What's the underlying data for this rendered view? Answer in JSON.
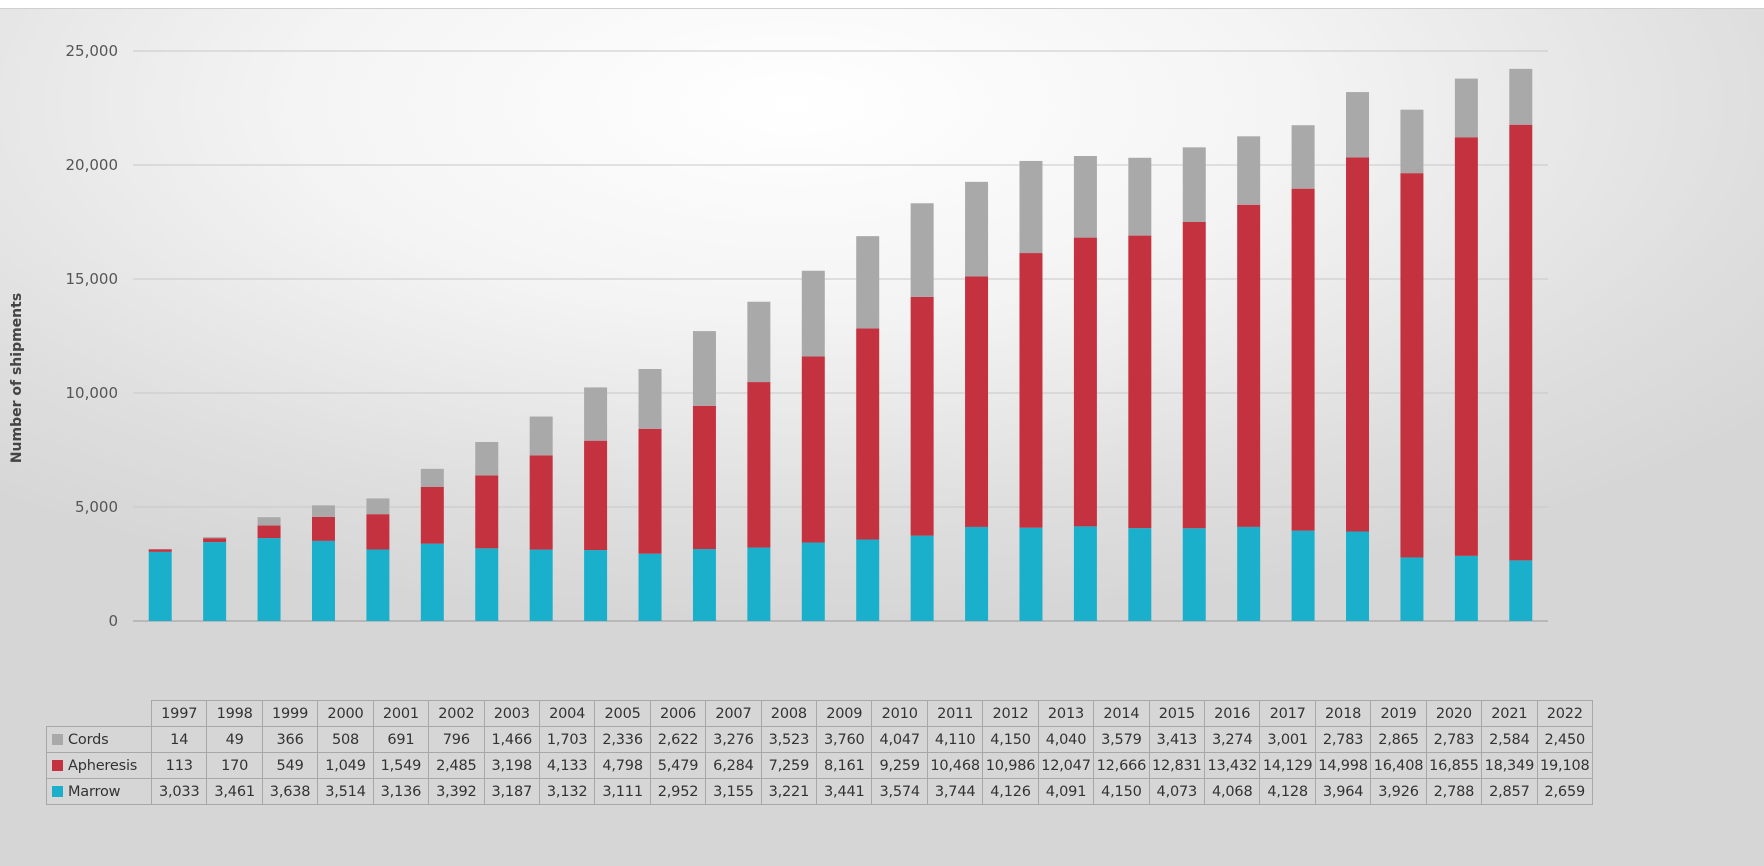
{
  "chart_data": {
    "type": "bar",
    "stacked": true,
    "title": "",
    "xlabel": "",
    "ylabel": "Number of shipments",
    "ylim": [
      0,
      25000
    ],
    "yticks": [
      0,
      5000,
      10000,
      15000,
      20000,
      25000
    ],
    "ytick_labels": [
      "0",
      "5,000",
      "10,000",
      "15,000",
      "20,000",
      "25,000"
    ],
    "grid": true,
    "legend": "data-table",
    "categories": [
      "1997",
      "1998",
      "1999",
      "2000",
      "2001",
      "2002",
      "2003",
      "2004",
      "2005",
      "2006",
      "2007",
      "2008",
      "2009",
      "2010",
      "2011",
      "2012",
      "2013",
      "2014",
      "2015",
      "2016",
      "2017",
      "2018",
      "2019",
      "2020",
      "2021",
      "2022"
    ],
    "series": [
      {
        "name": "Marrow",
        "color": "#1ab0cc",
        "values": [
          3033,
          3461,
          3638,
          3514,
          3136,
          3392,
          3187,
          3132,
          3111,
          2952,
          3155,
          3221,
          3441,
          3574,
          3744,
          4126,
          4091,
          4150,
          4073,
          4068,
          4128,
          3964,
          3926,
          2788,
          2857,
          2659
        ],
        "labels": [
          "3,033",
          "3,461",
          "3,638",
          "3,514",
          "3,136",
          "3,392",
          "3,187",
          "3,132",
          "3,111",
          "2,952",
          "3,155",
          "3,221",
          "3,441",
          "3,574",
          "3,744",
          "4,126",
          "4,091",
          "4,150",
          "4,073",
          "4,068",
          "4,128",
          "3,964",
          "3,926",
          "2,788",
          "2,857",
          "2,659"
        ]
      },
      {
        "name": "Apheresis",
        "color": "#c5323f",
        "values": [
          113,
          170,
          549,
          1049,
          1549,
          2485,
          3198,
          4133,
          4798,
          5479,
          6284,
          7259,
          8161,
          9259,
          10468,
          10986,
          12047,
          12666,
          12831,
          13432,
          14129,
          14998,
          16408,
          16855,
          18349,
          19108
        ],
        "labels": [
          "113",
          "170",
          "549",
          "1,049",
          "1,549",
          "2,485",
          "3,198",
          "4,133",
          "4,798",
          "5,479",
          "6,284",
          "7,259",
          "8,161",
          "9,259",
          "10,468",
          "10,986",
          "12,047",
          "12,666",
          "12,831",
          "13,432",
          "14,129",
          "14,998",
          "16,408",
          "16,855",
          "18,349",
          "19,108"
        ]
      },
      {
        "name": "Cords",
        "color": "#a9a9a9",
        "values": [
          14,
          49,
          366,
          508,
          691,
          796,
          1466,
          1703,
          2336,
          2622,
          3276,
          3523,
          3760,
          4047,
          4110,
          4150,
          4040,
          3579,
          3413,
          3274,
          3001,
          2783,
          2865,
          2783,
          2584,
          2450
        ],
        "labels": [
          "14",
          "49",
          "366",
          "508",
          "691",
          "796",
          "1,466",
          "1,703",
          "2,336",
          "2,622",
          "3,276",
          "3,523",
          "3,760",
          "4,047",
          "4,110",
          "4,150",
          "4,040",
          "3,579",
          "3,413",
          "3,274",
          "3,001",
          "2,783",
          "2,865",
          "2,783",
          "2,584",
          "2,450"
        ]
      }
    ]
  }
}
